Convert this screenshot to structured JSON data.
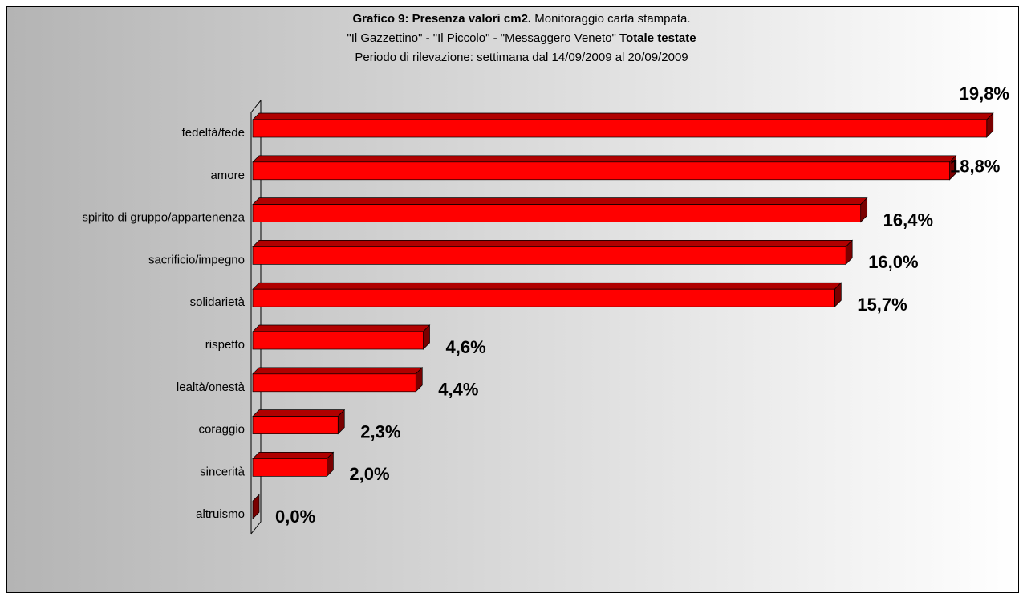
{
  "chart_data": {
    "type": "bar",
    "orientation": "horizontal",
    "title_lines": [
      [
        {
          "text": "Grafico 9: Presenza valori cm2.",
          "bold": true
        },
        {
          "text": " Monitoraggio carta stampata.",
          "bold": false
        }
      ],
      [
        {
          "text": "\"Il Gazzettino\" - \"Il Piccolo\" - \"Messaggero Veneto\" ",
          "bold": false
        },
        {
          "text": "Totale testate",
          "bold": true
        }
      ],
      [
        {
          "text": "Periodo di rilevazione: settimana dal 14/09/2009 al 20/09/2009",
          "bold": false
        }
      ]
    ],
    "categories": [
      "fedeltà/fede",
      "amore",
      "spirito di gruppo/appartenenza",
      "sacrificio/impegno",
      "solidarietà",
      "rispetto",
      "lealtà/onestà",
      "coraggio",
      "sincerità",
      "altruismo"
    ],
    "values": [
      19.8,
      18.8,
      16.4,
      16.0,
      15.7,
      4.6,
      4.4,
      2.3,
      2.0,
      0.0
    ],
    "value_labels": [
      "19,8%",
      "18,8%",
      "16,4%",
      "16,0%",
      "15,7%",
      "4,6%",
      "4,4%",
      "2,3%",
      "2,0%",
      "0,0%"
    ],
    "color": "#ff0000",
    "xlim": [
      0,
      20
    ]
  }
}
